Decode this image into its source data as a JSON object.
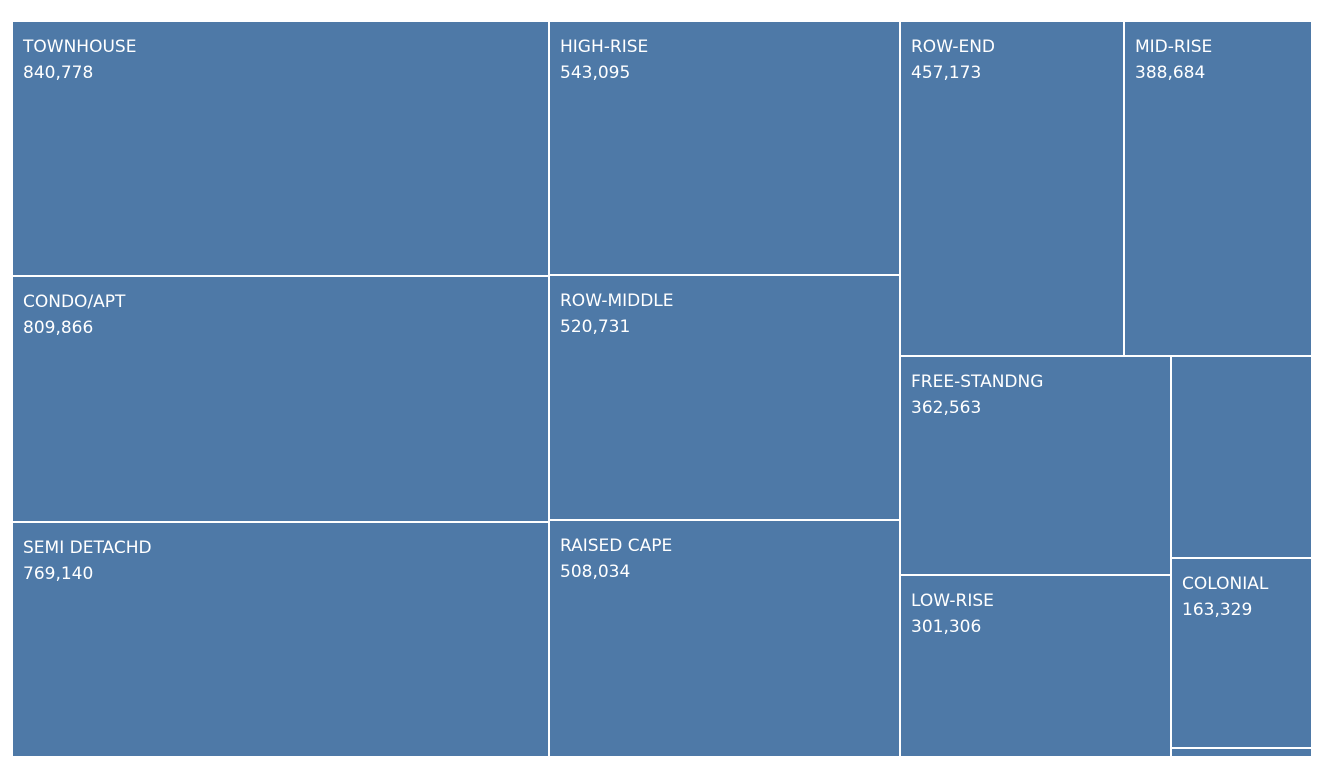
{
  "chart_data": {
    "type": "treemap",
    "title": "",
    "color": "#4e79a7",
    "items": [
      {
        "name": "TOWNHOUSE",
        "value": 840778,
        "label": "840,778"
      },
      {
        "name": "CONDO/APT",
        "value": 809866,
        "label": "809,866"
      },
      {
        "name": "SEMI DETACHD",
        "value": 769140,
        "label": "769,140"
      },
      {
        "name": "HIGH-RISE",
        "value": 543095,
        "label": "543,095"
      },
      {
        "name": "ROW-MIDDLE",
        "value": 520731,
        "label": "520,731"
      },
      {
        "name": "RAISED CAPE",
        "value": 508034,
        "label": "508,034"
      },
      {
        "name": "ROW-END",
        "value": 457173,
        "label": "457,173"
      },
      {
        "name": "MID-RISE",
        "value": 388684,
        "label": "388,684"
      },
      {
        "name": "FREE-STANDNG",
        "value": 362563,
        "label": "362,563"
      },
      {
        "name": "LOW-RISE",
        "value": 301306,
        "label": "301,306"
      },
      {
        "name": "COLONIAL",
        "value": 163329,
        "label": "163,329"
      }
    ]
  }
}
